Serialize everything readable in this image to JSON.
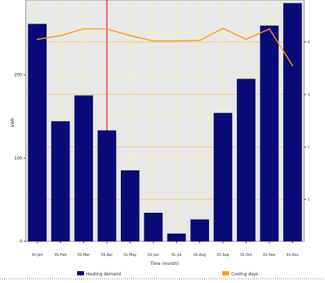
{
  "chart_data": {
    "type": "bar",
    "categories": [
      "01-Jan",
      "01-Feb",
      "01-Mar",
      "01-Apr",
      "01-May",
      "01-Jun",
      "01-Jul",
      "01-Aug",
      "01-Sep",
      "01-Oct",
      "01-Nov",
      "01-Dec"
    ],
    "series": [
      {
        "name": "Heating demand",
        "kind": "bar",
        "axis": "left",
        "color": "#0a0a78",
        "values": [
          261,
          144,
          175,
          133,
          85,
          34,
          9,
          26,
          154,
          195,
          259,
          286
        ]
      },
      {
        "name": "Cooling days",
        "kind": "line",
        "axis": "right",
        "color": "#ff9a1a",
        "values": [
          4.05,
          4.12,
          4.25,
          4.25,
          4.12,
          4.02,
          4.02,
          4.03,
          4.26,
          4.05,
          4.25,
          3.55
        ]
      }
    ],
    "xlabel": "Time (month)",
    "ylabel": "kWh",
    "ylim": [
      0,
      290
    ],
    "y_ticks": [
      0,
      100,
      200
    ],
    "y2_ticks": [
      1,
      2,
      3,
      4
    ],
    "grid": true,
    "legend_position": "bottom",
    "colors": {
      "plot_background": "#e8e8e8",
      "grid_light": "#eef5a8",
      "grid_accent": "#f0a020",
      "marker_line": "#ff0000"
    }
  }
}
